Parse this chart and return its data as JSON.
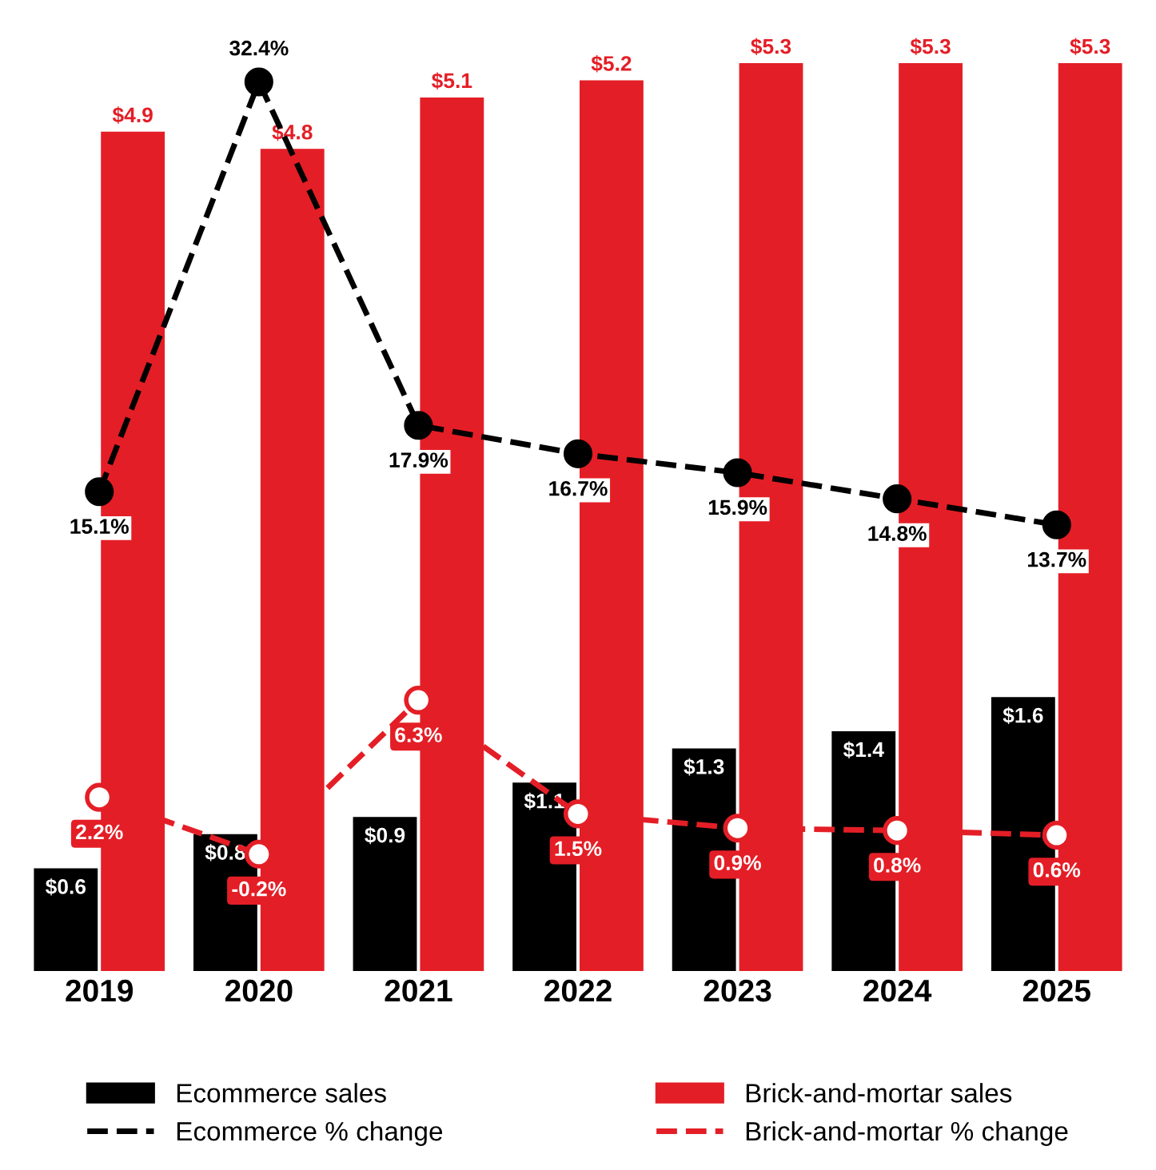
{
  "chart_data": {
    "type": "bar",
    "categories": [
      "2019",
      "2020",
      "2021",
      "2022",
      "2023",
      "2024",
      "2025"
    ],
    "series": [
      {
        "name": "Ecommerce sales",
        "color": "#000000",
        "values": [
          0.6,
          0.8,
          0.9,
          1.1,
          1.3,
          1.4,
          1.6
        ],
        "value_labels": [
          "$0.6",
          "$0.8",
          "$0.9",
          "$1.1",
          "$1.3",
          "$1.4",
          "$1.6"
        ]
      },
      {
        "name": "Brick-and-mortar sales",
        "color": "#e41e26",
        "values": [
          4.9,
          4.8,
          5.1,
          5.2,
          5.3,
          5.3,
          5.3
        ],
        "value_labels": [
          "$4.9",
          "$4.8",
          "$5.1",
          "$5.2",
          "$5.3",
          "$5.3",
          "$5.3"
        ]
      },
      {
        "name": "Ecommerce % change",
        "type": "line",
        "axis": "y2",
        "color": "#000000",
        "line_style": "dashed",
        "marker": "circle",
        "values": [
          15.1,
          32.4,
          17.9,
          16.7,
          15.9,
          14.8,
          13.7
        ],
        "value_labels": [
          "15.1%",
          "32.4%",
          "17.9%",
          "16.7%",
          "15.9%",
          "14.8%",
          "13.7%"
        ]
      },
      {
        "name": "Brick-and-mortar % change",
        "type": "line",
        "axis": "y2",
        "color": "#e41e26",
        "line_style": "dashed",
        "marker": "circle",
        "values": [
          2.2,
          -0.2,
          6.3,
          1.5,
          0.9,
          0.8,
          0.6
        ],
        "value_labels": [
          "2.2%",
          "-0.2%",
          "6.3%",
          "1.5%",
          "0.9%",
          "0.8%",
          "0.6%"
        ]
      }
    ],
    "tick_labels": "x",
    "grid": false,
    "legend": "bottom"
  }
}
